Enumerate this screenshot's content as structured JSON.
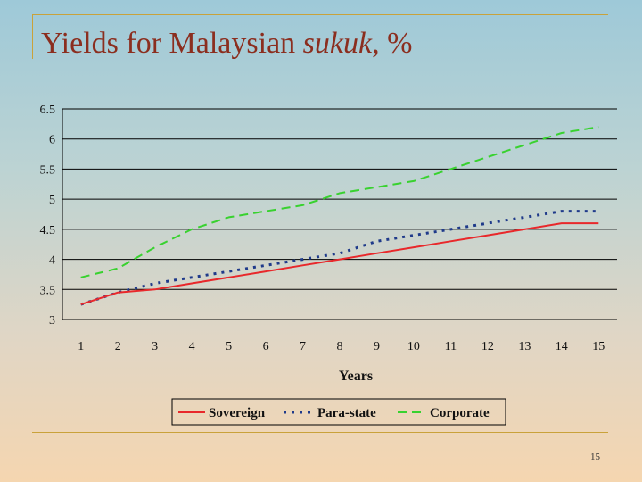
{
  "slide": {
    "title_main": "Yields for Malaysian ",
    "title_italic": "sukuk",
    "title_suffix": ", %",
    "page_number": "15"
  },
  "chart_data": {
    "type": "line",
    "title": "",
    "xlabel": "Years",
    "ylabel": "",
    "categories": [
      1,
      2,
      3,
      4,
      5,
      6,
      7,
      8,
      9,
      10,
      11,
      12,
      13,
      14,
      15
    ],
    "ylim": [
      3,
      6.5
    ],
    "yticks": [
      3,
      3.5,
      4,
      4.5,
      5,
      5.5,
      6,
      6.5
    ],
    "ytick_labels": [
      "3",
      "3.5",
      "4",
      "4.5",
      "5",
      "5.5",
      "6",
      "6.5"
    ],
    "grid": true,
    "legend_position": "bottom",
    "series": [
      {
        "name": "Sovereign",
        "color": "#e8282b",
        "style": "solid",
        "values": [
          3.25,
          3.45,
          3.5,
          3.6,
          3.7,
          3.8,
          3.9,
          4.0,
          4.1,
          4.2,
          4.3,
          4.4,
          4.5,
          4.6,
          4.6
        ]
      },
      {
        "name": "Para-state",
        "color": "#1f3a8a",
        "style": "dotted",
        "values": [
          3.25,
          3.45,
          3.6,
          3.7,
          3.8,
          3.9,
          4.0,
          4.1,
          4.3,
          4.4,
          4.5,
          4.6,
          4.7,
          4.8,
          4.8
        ]
      },
      {
        "name": "Corporate",
        "color": "#38d22f",
        "style": "dashed",
        "values": [
          3.7,
          3.85,
          4.2,
          4.5,
          4.7,
          4.8,
          4.9,
          5.1,
          5.2,
          5.3,
          5.5,
          5.7,
          5.9,
          6.1,
          6.2
        ]
      }
    ]
  }
}
